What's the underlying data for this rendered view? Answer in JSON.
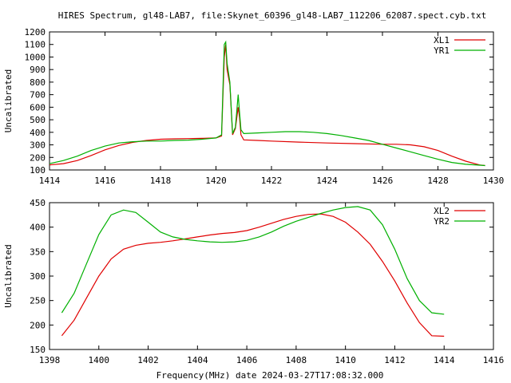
{
  "title": "HIRES Spectrum, gl48-LAB7, file:Skynet_60396_gl48-LAB7_112206_62087.spect.cyb.txt",
  "xlabel": "Frequency(MHz) date 2024-03-27T17:08:32.000",
  "colors": {
    "red": "#e00000",
    "green": "#00b000"
  },
  "chart_data": [
    {
      "type": "line",
      "ylabel": "Uncalibrated",
      "xlim": [
        1414,
        1430
      ],
      "ylim": [
        100,
        1200
      ],
      "xticks": [
        1414,
        1416,
        1418,
        1420,
        1422,
        1424,
        1426,
        1428,
        1430
      ],
      "yticks": [
        100,
        200,
        300,
        400,
        500,
        600,
        700,
        800,
        900,
        1000,
        1100,
        1200
      ],
      "legend": "top-right",
      "series": [
        {
          "name": "XL1",
          "color": "#e00000",
          "points": [
            [
              1414.0,
              140
            ],
            [
              1414.5,
              150
            ],
            [
              1415.0,
              175
            ],
            [
              1415.5,
              215
            ],
            [
              1416.0,
              260
            ],
            [
              1416.5,
              295
            ],
            [
              1417.0,
              320
            ],
            [
              1417.5,
              335
            ],
            [
              1418.0,
              345
            ],
            [
              1418.5,
              348
            ],
            [
              1419.0,
              350
            ],
            [
              1419.5,
              352
            ],
            [
              1420.0,
              355
            ],
            [
              1420.2,
              370
            ],
            [
              1420.3,
              1000
            ],
            [
              1420.35,
              1100
            ],
            [
              1420.4,
              900
            ],
            [
              1420.5,
              780
            ],
            [
              1420.6,
              380
            ],
            [
              1420.7,
              430
            ],
            [
              1420.8,
              600
            ],
            [
              1420.85,
              520
            ],
            [
              1420.9,
              380
            ],
            [
              1421.0,
              340
            ],
            [
              1421.5,
              335
            ],
            [
              1422.0,
              330
            ],
            [
              1423.0,
              322
            ],
            [
              1424.0,
              315
            ],
            [
              1425.0,
              310
            ],
            [
              1426.0,
              305
            ],
            [
              1426.5,
              305
            ],
            [
              1427.0,
              300
            ],
            [
              1427.5,
              285
            ],
            [
              1428.0,
              255
            ],
            [
              1428.5,
              210
            ],
            [
              1429.0,
              170
            ],
            [
              1429.5,
              140
            ],
            [
              1429.7,
              135
            ]
          ]
        },
        {
          "name": "YR1",
          "color": "#00b000",
          "points": [
            [
              1414.0,
              150
            ],
            [
              1414.5,
              175
            ],
            [
              1415.0,
              210
            ],
            [
              1415.5,
              255
            ],
            [
              1416.0,
              290
            ],
            [
              1416.5,
              315
            ],
            [
              1417.0,
              325
            ],
            [
              1417.5,
              330
            ],
            [
              1418.0,
              330
            ],
            [
              1418.5,
              335
            ],
            [
              1419.0,
              338
            ],
            [
              1419.5,
              345
            ],
            [
              1420.0,
              355
            ],
            [
              1420.2,
              380
            ],
            [
              1420.3,
              1100
            ],
            [
              1420.35,
              1120
            ],
            [
              1420.4,
              950
            ],
            [
              1420.5,
              800
            ],
            [
              1420.6,
              390
            ],
            [
              1420.7,
              440
            ],
            [
              1420.8,
              700
            ],
            [
              1420.85,
              560
            ],
            [
              1420.9,
              420
            ],
            [
              1421.0,
              390
            ],
            [
              1421.5,
              395
            ],
            [
              1422.0,
              400
            ],
            [
              1422.5,
              405
            ],
            [
              1423.0,
              405
            ],
            [
              1423.5,
              400
            ],
            [
              1424.0,
              390
            ],
            [
              1424.5,
              375
            ],
            [
              1425.0,
              355
            ],
            [
              1425.5,
              335
            ],
            [
              1426.0,
              305
            ],
            [
              1426.5,
              275
            ],
            [
              1427.0,
              245
            ],
            [
              1427.5,
              215
            ],
            [
              1428.0,
              185
            ],
            [
              1428.5,
              160
            ],
            [
              1429.0,
              145
            ],
            [
              1429.5,
              138
            ],
            [
              1429.7,
              135
            ]
          ]
        }
      ]
    },
    {
      "type": "line",
      "ylabel": "Uncalibrated",
      "xlim": [
        1398,
        1416
      ],
      "ylim": [
        150,
        450
      ],
      "xticks": [
        1398,
        1400,
        1402,
        1404,
        1406,
        1408,
        1410,
        1412,
        1414,
        1416
      ],
      "yticks": [
        150,
        200,
        250,
        300,
        350,
        400,
        450
      ],
      "legend": "top-right",
      "series": [
        {
          "name": "XL2",
          "color": "#e00000",
          "points": [
            [
              1398.5,
              178
            ],
            [
              1399.0,
              210
            ],
            [
              1399.5,
              255
            ],
            [
              1400.0,
              300
            ],
            [
              1400.5,
              335
            ],
            [
              1401.0,
              355
            ],
            [
              1401.5,
              363
            ],
            [
              1402.0,
              367
            ],
            [
              1402.5,
              369
            ],
            [
              1403.0,
              372
            ],
            [
              1403.5,
              376
            ],
            [
              1404.0,
              380
            ],
            [
              1404.5,
              384
            ],
            [
              1405.0,
              387
            ],
            [
              1405.5,
              389
            ],
            [
              1406.0,
              393
            ],
            [
              1406.5,
              400
            ],
            [
              1407.0,
              408
            ],
            [
              1407.5,
              416
            ],
            [
              1408.0,
              422
            ],
            [
              1408.5,
              426
            ],
            [
              1409.0,
              427
            ],
            [
              1409.5,
              422
            ],
            [
              1410.0,
              410
            ],
            [
              1410.5,
              390
            ],
            [
              1411.0,
              365
            ],
            [
              1411.5,
              330
            ],
            [
              1412.0,
              290
            ],
            [
              1412.5,
              245
            ],
            [
              1413.0,
              205
            ],
            [
              1413.5,
              178
            ],
            [
              1414.0,
              177
            ]
          ]
        },
        {
          "name": "YR2",
          "color": "#00b000",
          "points": [
            [
              1398.5,
              225
            ],
            [
              1399.0,
              265
            ],
            [
              1399.5,
              325
            ],
            [
              1400.0,
              385
            ],
            [
              1400.5,
              425
            ],
            [
              1401.0,
              435
            ],
            [
              1401.5,
              430
            ],
            [
              1402.0,
              410
            ],
            [
              1402.5,
              390
            ],
            [
              1403.0,
              380
            ],
            [
              1403.5,
              375
            ],
            [
              1404.0,
              372
            ],
            [
              1404.5,
              370
            ],
            [
              1405.0,
              369
            ],
            [
              1405.5,
              370
            ],
            [
              1406.0,
              373
            ],
            [
              1406.5,
              380
            ],
            [
              1407.0,
              390
            ],
            [
              1407.5,
              402
            ],
            [
              1408.0,
              412
            ],
            [
              1408.5,
              420
            ],
            [
              1409.0,
              428
            ],
            [
              1409.5,
              435
            ],
            [
              1410.0,
              440
            ],
            [
              1410.5,
              442
            ],
            [
              1411.0,
              435
            ],
            [
              1411.5,
              405
            ],
            [
              1412.0,
              355
            ],
            [
              1412.5,
              295
            ],
            [
              1413.0,
              250
            ],
            [
              1413.5,
              225
            ],
            [
              1414.0,
              222
            ]
          ]
        }
      ]
    }
  ]
}
